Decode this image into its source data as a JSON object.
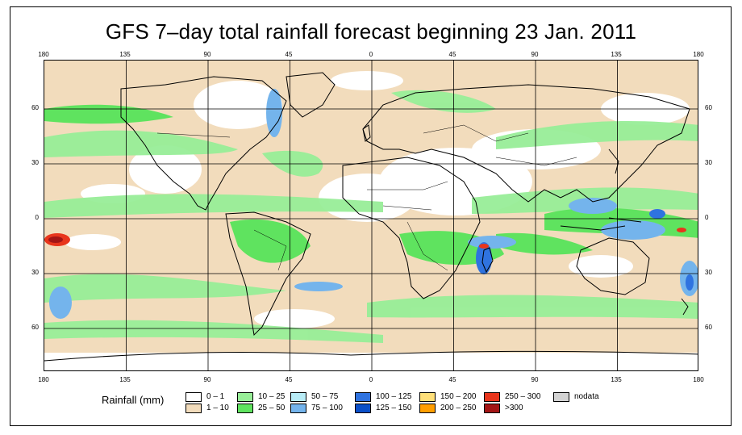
{
  "title": "GFS 7–day total rainfall forecast beginning 23 Jan. 2011",
  "longitude_ticks": [
    "180",
    "135",
    "90",
    "45",
    "0",
    "45",
    "90",
    "135",
    "180"
  ],
  "latitude_ticks": [
    "60",
    "30",
    "0",
    "30",
    "60"
  ],
  "legend": {
    "title": "Rainfall (mm)",
    "items": [
      {
        "label": "0 – 1",
        "color": "#ffffff"
      },
      {
        "label": "1 – 10",
        "color": "#f2dcbc"
      },
      {
        "label": "10 – 25",
        "color": "#98ee98"
      },
      {
        "label": "25 – 50",
        "color": "#5fe35f"
      },
      {
        "label": "50 – 75",
        "color": "#b8ecf6"
      },
      {
        "label": "75 – 100",
        "color": "#74b4ec"
      },
      {
        "label": "100 – 125",
        "color": "#2f73e0"
      },
      {
        "label": "125 – 150",
        "color": "#0a4fc8"
      },
      {
        "label": "150 – 200",
        "color": "#ffe07a"
      },
      {
        "label": "200 – 250",
        "color": "#ff9e00"
      },
      {
        "label": "250 – 300",
        "color": "#e8351c"
      },
      {
        "label": ">300",
        "color": "#a31515"
      },
      {
        "label": "nodata",
        "color": "#d3d3d3"
      }
    ]
  },
  "colors": {
    "ocean_background": "#f2dcbc",
    "land_dry": "#ffffff",
    "rain_light": "#98ee98",
    "rain_moderate": "#5fe35f",
    "rain_heavy": "#74b4ec",
    "rain_extreme": "#a31515",
    "coastline": "#000000",
    "grid": "#000000"
  }
}
